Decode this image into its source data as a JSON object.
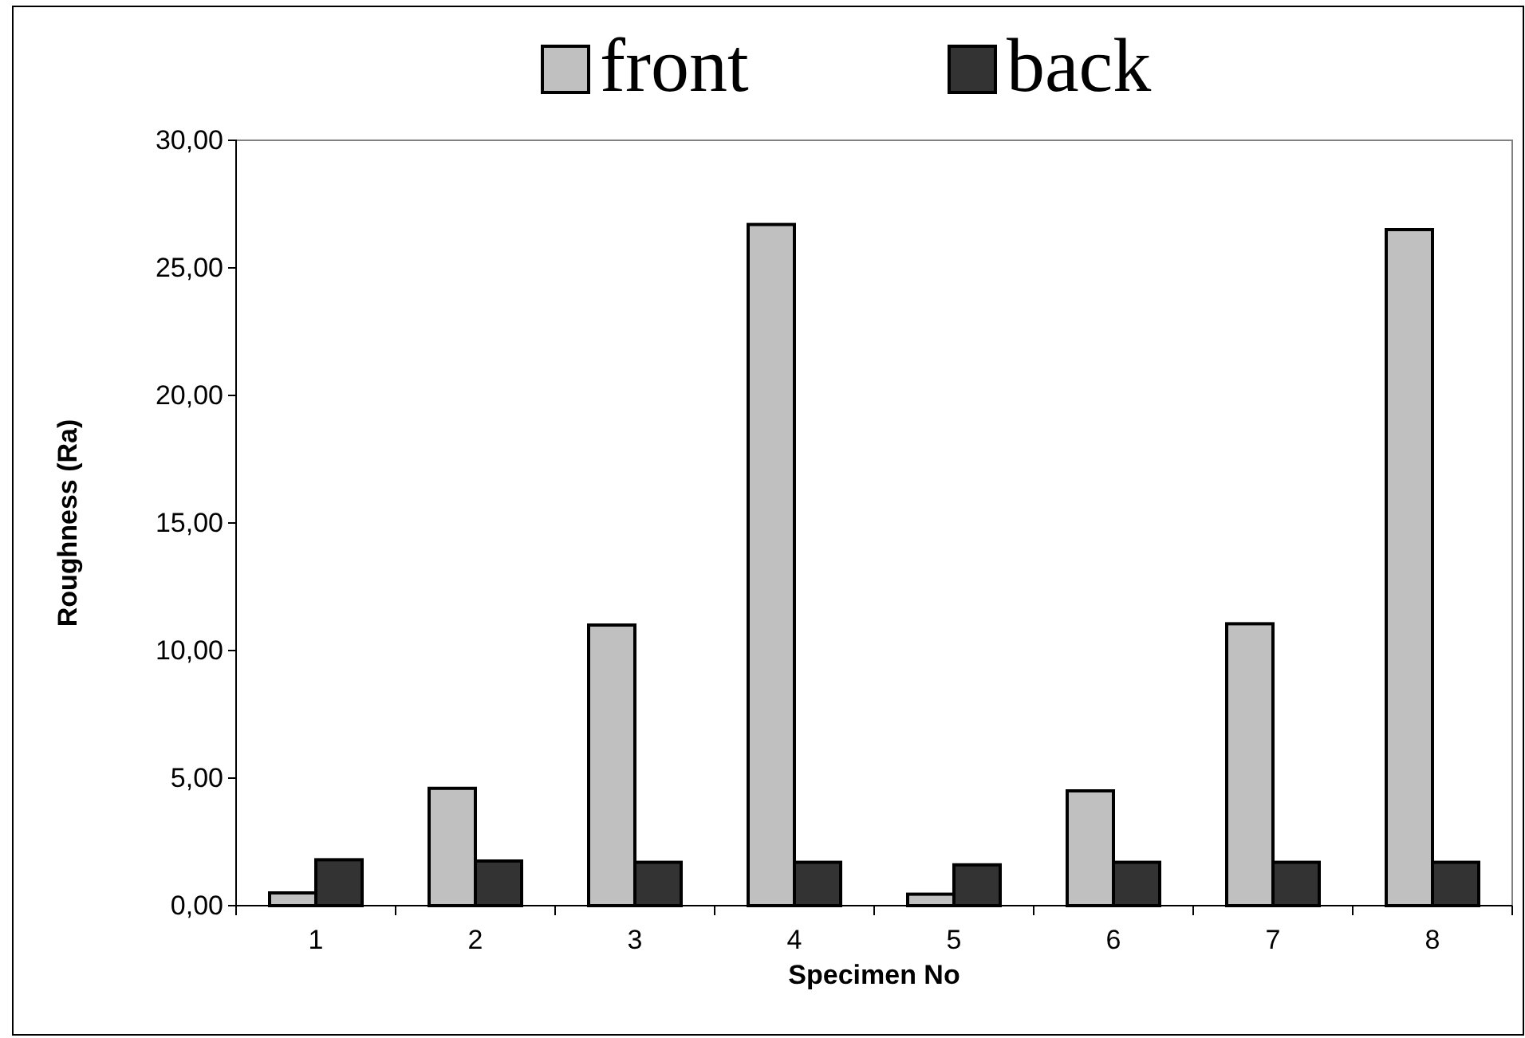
{
  "chart_data": {
    "type": "bar",
    "xlabel": "Specimen No",
    "ylabel": "Roughness (Ra)",
    "categories": [
      "1",
      "2",
      "3",
      "4",
      "5",
      "6",
      "7",
      "8"
    ],
    "series": [
      {
        "name": "front",
        "color": "#c0c0c0",
        "values": [
          0.5,
          4.6,
          11.0,
          26.7,
          0.45,
          4.5,
          11.05,
          26.5
        ]
      },
      {
        "name": "back",
        "color": "#333333",
        "values": [
          1.8,
          1.75,
          1.7,
          1.7,
          1.6,
          1.7,
          1.7,
          1.7
        ]
      }
    ],
    "ylim": [
      0,
      30
    ],
    "yticks": [
      {
        "value": 0,
        "label": "0,00"
      },
      {
        "value": 5,
        "label": "5,00"
      },
      {
        "value": 10,
        "label": "10,00"
      },
      {
        "value": 15,
        "label": "15,00"
      },
      {
        "value": 20,
        "label": "20,00"
      },
      {
        "value": 25,
        "label": "25,00"
      },
      {
        "value": 30,
        "label": "30,00"
      }
    ],
    "grid": false,
    "legend": "top"
  }
}
